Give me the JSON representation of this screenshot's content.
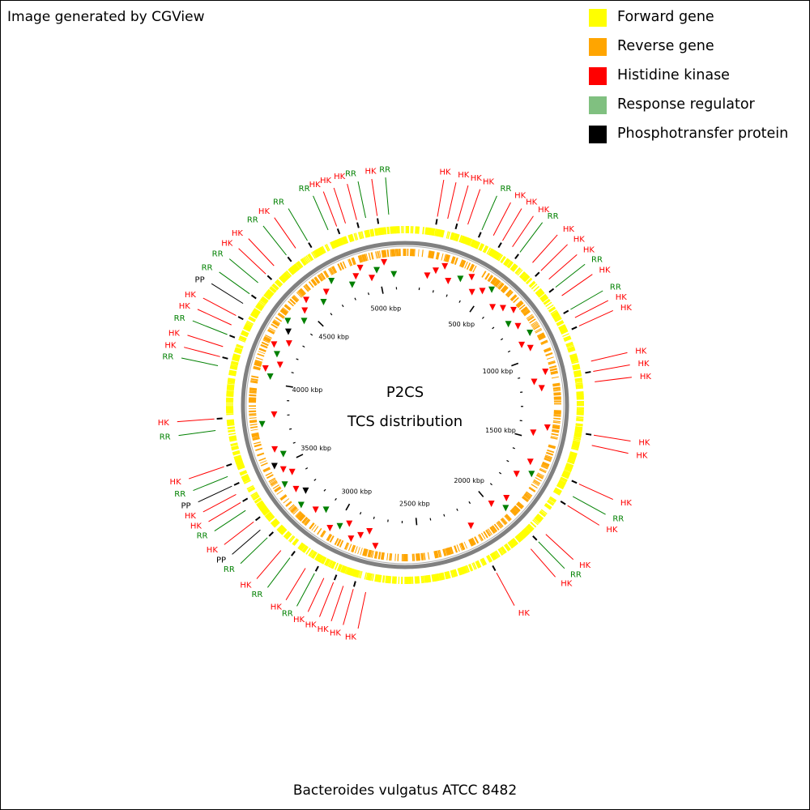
{
  "credit": "Image generated by CGView",
  "organism": "Bacteroides vulgatus ATCC 8482",
  "center": {
    "line1": "P2CS",
    "line2": "TCS distribution"
  },
  "legend": [
    {
      "label": "Forward gene",
      "color": "#ffff00"
    },
    {
      "label": "Reverse gene",
      "color": "#ffa500"
    },
    {
      "label": "Histidine kinase",
      "color": "#ff0000"
    },
    {
      "label": "Response regulator",
      "color": "#80c080"
    },
    {
      "label": "Phosphotransfer protein",
      "color": "#000000"
    }
  ],
  "colors": {
    "HK": "#ff0000",
    "RR": "#008000",
    "PP": "#000000",
    "forward": "#ffff00",
    "reverse": "#ffa500",
    "backbone": "#808080"
  },
  "chart_data": {
    "type": "circular_genome_map",
    "genome_length_kbp": 5160,
    "tick_labels": [
      {
        "kbp": 500,
        "label": "500 kbp"
      },
      {
        "kbp": 1000,
        "label": "1000 kbp"
      },
      {
        "kbp": 1500,
        "label": "1500 kbp"
      },
      {
        "kbp": 2000,
        "label": "2000 kbp"
      },
      {
        "kbp": 2500,
        "label": "2500 kbp"
      },
      {
        "kbp": 3000,
        "label": "3000 kbp"
      },
      {
        "kbp": 3500,
        "label": "3500 kbp"
      },
      {
        "kbp": 4000,
        "label": "4000 kbp"
      },
      {
        "kbp": 4500,
        "label": "4500 kbp"
      },
      {
        "kbp": 5000,
        "label": "5000 kbp"
      }
    ],
    "features": [
      {
        "label": "HK",
        "type": "HK",
        "kbp": 140
      },
      {
        "label": "HK",
        "type": "HK",
        "kbp": 185
      },
      {
        "label": "HK",
        "type": "HK",
        "kbp": 230
      },
      {
        "label": "HK",
        "type": "HK",
        "kbp": 275
      },
      {
        "label": "RR",
        "type": "RR",
        "kbp": 340
      },
      {
        "label": "HK",
        "type": "HK",
        "kbp": 395
      },
      {
        "label": "HK",
        "type": "HK",
        "kbp": 440
      },
      {
        "label": "HK",
        "type": "HK",
        "kbp": 490
      },
      {
        "label": "RR",
        "type": "RR",
        "kbp": 530
      },
      {
        "label": "HK",
        "type": "HK",
        "kbp": 600
      },
      {
        "label": "HK",
        "type": "HK",
        "kbp": 650
      },
      {
        "label": "HK",
        "type": "HK",
        "kbp": 700
      },
      {
        "label": "RR",
        "type": "RR",
        "kbp": 745
      },
      {
        "label": "HK",
        "type": "HK",
        "kbp": 790
      },
      {
        "label": "RR",
        "type": "RR",
        "kbp": 860
      },
      {
        "label": "HK",
        "type": "HK",
        "kbp": 900
      },
      {
        "label": "HK",
        "type": "HK",
        "kbp": 940
      },
      {
        "label": "HK",
        "type": "HK",
        "kbp": 1100
      },
      {
        "label": "HK",
        "type": "HK",
        "kbp": 1145
      },
      {
        "label": "HK",
        "type": "HK",
        "kbp": 1190
      },
      {
        "label": "HK",
        "type": "HK",
        "kbp": 1420
      },
      {
        "label": "HK",
        "type": "HK",
        "kbp": 1465
      },
      {
        "label": "HK",
        "type": "HK",
        "kbp": 1640
      },
      {
        "label": "RR",
        "type": "RR",
        "kbp": 1700
      },
      {
        "label": "HK",
        "type": "HK",
        "kbp": 1745
      },
      {
        "label": "HK",
        "type": "HK",
        "kbp": 1900
      },
      {
        "label": "RR",
        "type": "RR",
        "kbp": 1945
      },
      {
        "label": "HK",
        "type": "HK",
        "kbp": 1990
      },
      {
        "label": "HK",
        "type": "HK",
        "kbp": 2170
      },
      {
        "label": "HK",
        "type": "HK",
        "kbp": 2750
      },
      {
        "label": "HK",
        "type": "HK",
        "kbp": 2805
      },
      {
        "label": "HK",
        "type": "HK",
        "kbp": 2850
      },
      {
        "label": "HK",
        "type": "HK",
        "kbp": 2895
      },
      {
        "label": "HK",
        "type": "HK",
        "kbp": 2940
      },
      {
        "label": "RR",
        "type": "RR",
        "kbp": 2985
      },
      {
        "label": "HK",
        "type": "HK",
        "kbp": 3030
      },
      {
        "label": "RR",
        "type": "RR",
        "kbp": 3110
      },
      {
        "label": "HK",
        "type": "HK",
        "kbp": 3160
      },
      {
        "label": "RR",
        "type": "RR",
        "kbp": 3240
      },
      {
        "label": "PP",
        "type": "PP",
        "kbp": 3285
      },
      {
        "label": "HK",
        "type": "HK",
        "kbp": 3330
      },
      {
        "label": "RR",
        "type": "RR",
        "kbp": 3390
      },
      {
        "label": "HK",
        "type": "HK",
        "kbp": 3430
      },
      {
        "label": "HK",
        "type": "HK",
        "kbp": 3470
      },
      {
        "label": "PP",
        "type": "PP",
        "kbp": 3510
      },
      {
        "label": "RR",
        "type": "RR",
        "kbp": 3555
      },
      {
        "label": "HK",
        "type": "HK",
        "kbp": 3600
      },
      {
        "label": "RR",
        "type": "RR",
        "kbp": 3760
      },
      {
        "label": "HK",
        "type": "HK",
        "kbp": 3810
      },
      {
        "label": "RR",
        "type": "RR",
        "kbp": 4040
      },
      {
        "label": "HK",
        "type": "HK",
        "kbp": 4080
      },
      {
        "label": "HK",
        "type": "HK",
        "kbp": 4125
      },
      {
        "label": "RR",
        "type": "RR",
        "kbp": 4180
      },
      {
        "label": "HK",
        "type": "HK",
        "kbp": 4225
      },
      {
        "label": "HK",
        "type": "HK",
        "kbp": 4270
      },
      {
        "label": "PP",
        "type": "PP",
        "kbp": 4330
      },
      {
        "label": "RR",
        "type": "RR",
        "kbp": 4380
      },
      {
        "label": "RR",
        "type": "RR",
        "kbp": 4440
      },
      {
        "label": "HK",
        "type": "HK",
        "kbp": 4490
      },
      {
        "label": "HK",
        "type": "HK",
        "kbp": 4540
      },
      {
        "label": "RR",
        "type": "RR",
        "kbp": 4610
      },
      {
        "label": "HK",
        "type": "HK",
        "kbp": 4660
      },
      {
        "label": "RR",
        "type": "RR",
        "kbp": 4720
      },
      {
        "label": "RR",
        "type": "RR",
        "kbp": 4820
      },
      {
        "label": "HK",
        "type": "HK",
        "kbp": 4860
      },
      {
        "label": "HK",
        "type": "HK",
        "kbp": 4900
      },
      {
        "label": "HK",
        "type": "HK",
        "kbp": 4950
      },
      {
        "label": "RR",
        "type": "RR",
        "kbp": 4990
      },
      {
        "label": "HK",
        "type": "HK",
        "kbp": 5040
      },
      {
        "label": "RR",
        "type": "RR",
        "kbp": 5090
      }
    ]
  }
}
